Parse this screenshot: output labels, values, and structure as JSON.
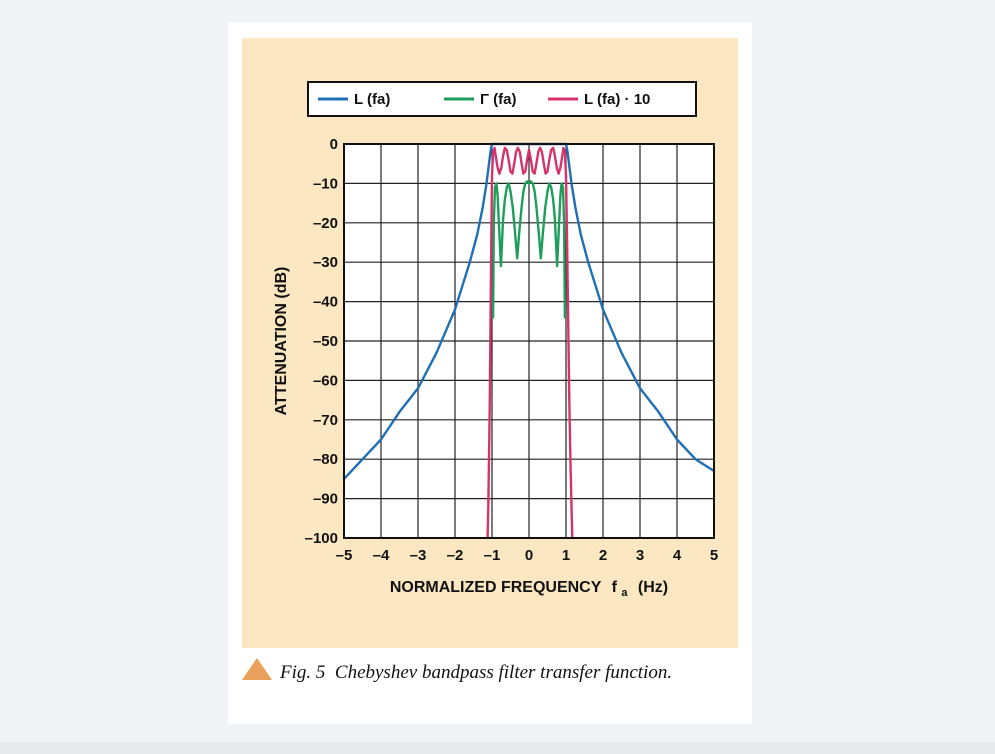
{
  "chart_data": {
    "type": "line",
    "title": "",
    "xlabel": "NORMALIZED FREQUENCY",
    "xlabel_symbol": "f",
    "xlabel_subscript": "a",
    "xlabel_unit": "(Hz)",
    "ylabel": "ATTENUATION (dB)",
    "xlim": [
      -5,
      5
    ],
    "ylim": [
      -100,
      0
    ],
    "x_ticks": [
      "–5",
      "–4",
      "–3",
      "–2",
      "–1",
      "0",
      "1",
      "2",
      "3",
      "4",
      "5"
    ],
    "y_ticks": [
      "0",
      "–10",
      "–20",
      "–30",
      "–40",
      "–50",
      "–60",
      "–70",
      "–80",
      "–90",
      "–100"
    ],
    "grid": true,
    "legend_position": "top",
    "series": [
      {
        "name": "L (fa)",
        "color": "#1f6fb5",
        "x": [
          -5,
          -4.5,
          -4,
          -3.5,
          -3,
          -2.5,
          -2,
          -1.8,
          -1.6,
          -1.4,
          -1.25,
          -1.15,
          -1.08,
          -1.04,
          -1.02,
          -1.0,
          1.0,
          1.02,
          1.04,
          1.08,
          1.15,
          1.25,
          1.4,
          1.6,
          1.8,
          2,
          2.5,
          3,
          3.5,
          4,
          4.5,
          5
        ],
        "y": [
          -85,
          -80,
          -75,
          -68,
          -62,
          -53,
          -42,
          -36,
          -30,
          -23,
          -16,
          -10,
          -5,
          -2,
          -0.8,
          0,
          0,
          -0.8,
          -2,
          -5,
          -10,
          -16,
          -23,
          -30,
          -36,
          -42,
          -53,
          -62,
          -68,
          -75,
          -80,
          -83
        ]
      },
      {
        "name": "Γ (fa)",
        "color": "#1e9e5a",
        "x": [
          -0.97,
          -0.95,
          -0.92,
          -0.88,
          -0.85,
          -0.82,
          -0.79,
          -0.76,
          -0.73,
          -0.7,
          -0.65,
          -0.6,
          -0.55,
          -0.5,
          -0.44,
          -0.38,
          -0.32,
          -0.26,
          -0.2,
          -0.15,
          -0.1,
          -0.05,
          0,
          0.05,
          0.1,
          0.15,
          0.2,
          0.26,
          0.32,
          0.38,
          0.44,
          0.5,
          0.55,
          0.6,
          0.65,
          0.7,
          0.73,
          0.76,
          0.79,
          0.82,
          0.85,
          0.88,
          0.92,
          0.95,
          0.97
        ],
        "y": [
          -44,
          -20,
          -11,
          -10,
          -13,
          -19,
          -25,
          -31,
          -25,
          -19,
          -14,
          -11,
          -10,
          -12,
          -16,
          -22,
          -29,
          -22,
          -16,
          -12,
          -10,
          -9.5,
          -10,
          -9.5,
          -10,
          -12,
          -16,
          -22,
          -29,
          -22,
          -16,
          -12,
          -10,
          -11,
          -14,
          -19,
          -25,
          -31,
          -25,
          -19,
          -13,
          -10,
          -11,
          -20,
          -44
        ]
      },
      {
        "name": "L (fa) · 10",
        "color": "#d6336c",
        "x": [
          -1.12,
          -1.1,
          -1.08,
          -1.06,
          -1.04,
          -1.02,
          -1.0,
          -0.97,
          -0.93,
          -0.9,
          -0.85,
          -0.8,
          -0.75,
          -0.7,
          -0.65,
          -0.6,
          -0.55,
          -0.5,
          -0.45,
          -0.4,
          -0.35,
          -0.3,
          -0.25,
          -0.2,
          -0.15,
          -0.1,
          -0.05,
          0,
          0.05,
          0.1,
          0.15,
          0.2,
          0.25,
          0.3,
          0.35,
          0.4,
          0.45,
          0.5,
          0.55,
          0.6,
          0.65,
          0.7,
          0.75,
          0.8,
          0.85,
          0.9,
          0.93,
          0.97,
          1.0,
          1.03,
          1.06,
          1.09,
          1.12,
          1.15,
          1.17
        ],
        "y": [
          -100,
          -92,
          -80,
          -65,
          -45,
          -25,
          -8,
          -2,
          -1,
          -3,
          -6,
          -7.5,
          -6,
          -3,
          -1,
          -1.5,
          -4,
          -7,
          -7.5,
          -5,
          -2,
          -1,
          -2,
          -5,
          -7.5,
          -7,
          -4,
          -1.5,
          -4,
          -7,
          -7.5,
          -5,
          -2,
          -1,
          -2,
          -5,
          -7.5,
          -7,
          -4,
          -1.5,
          -1,
          -3,
          -6,
          -7.5,
          -6,
          -3,
          -1,
          -2,
          -8,
          -25,
          -45,
          -65,
          -80,
          -92,
          -100
        ]
      }
    ]
  },
  "caption": {
    "label": "Fig. 5",
    "text": "Chebyshev bandpass filter transfer function."
  }
}
